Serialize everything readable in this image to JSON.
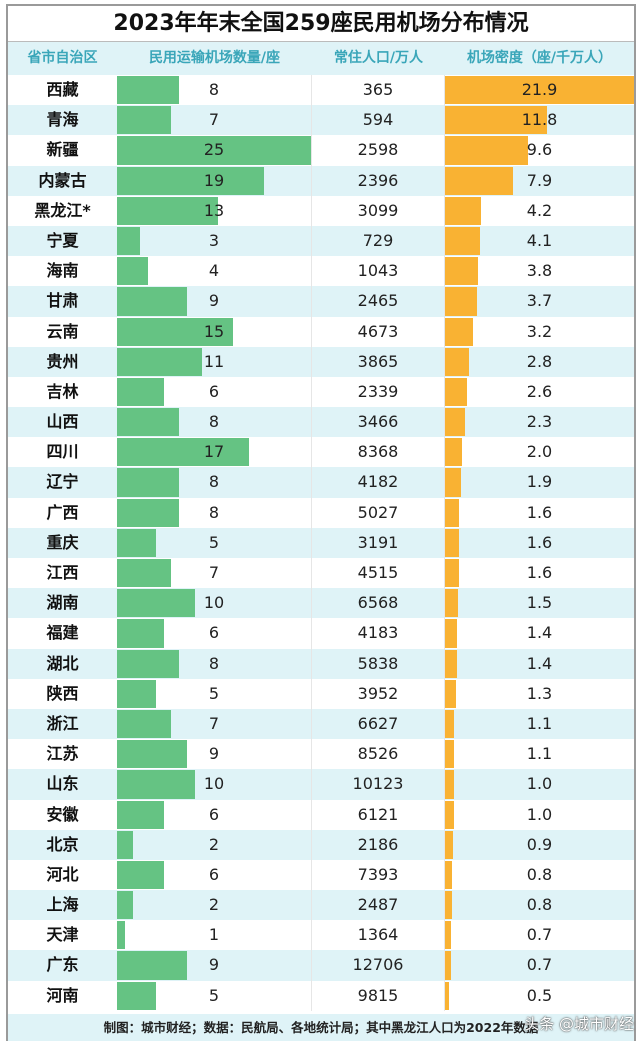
{
  "chart_data": {
    "type": "table",
    "title": "2023年年末全国259座民用机场分布情况",
    "columns": [
      "省市自治区",
      "民用运输机场数量/座",
      "常住人口/万人",
      "机场密度（座/千万人）"
    ],
    "colors": {
      "airports_bar": "#65c383",
      "density_bar": "#f9b233",
      "header_text": "#3aa6b9",
      "alt_row": "#dff3f7"
    },
    "rows": [
      [
        "西藏",
        8,
        365,
        "21.9"
      ],
      [
        "青海",
        7,
        594,
        "11.8"
      ],
      [
        "新疆",
        25,
        2598,
        "9.6"
      ],
      [
        "内蒙古",
        19,
        2396,
        "7.9"
      ],
      [
        "黑龙江*",
        13,
        3099,
        "4.2"
      ],
      [
        "宁夏",
        3,
        729,
        "4.1"
      ],
      [
        "海南",
        4,
        1043,
        "3.8"
      ],
      [
        "甘肃",
        9,
        2465,
        "3.7"
      ],
      [
        "云南",
        15,
        4673,
        "3.2"
      ],
      [
        "贵州",
        11,
        3865,
        "2.8"
      ],
      [
        "吉林",
        6,
        2339,
        "2.6"
      ],
      [
        "山西",
        8,
        3466,
        "2.3"
      ],
      [
        "四川",
        17,
        8368,
        "2.0"
      ],
      [
        "辽宁",
        8,
        4182,
        "1.9"
      ],
      [
        "广西",
        8,
        5027,
        "1.6"
      ],
      [
        "重庆",
        5,
        3191,
        "1.6"
      ],
      [
        "江西",
        7,
        4515,
        "1.6"
      ],
      [
        "湖南",
        10,
        6568,
        "1.5"
      ],
      [
        "福建",
        6,
        4183,
        "1.4"
      ],
      [
        "湖北",
        8,
        5838,
        "1.4"
      ],
      [
        "陕西",
        5,
        3952,
        "1.3"
      ],
      [
        "浙江",
        7,
        6627,
        "1.1"
      ],
      [
        "江苏",
        9,
        8526,
        "1.1"
      ],
      [
        "山东",
        10,
        10123,
        "1.0"
      ],
      [
        "安徽",
        6,
        6121,
        "1.0"
      ],
      [
        "北京",
        2,
        2186,
        "0.9"
      ],
      [
        "河北",
        6,
        7393,
        "0.8"
      ],
      [
        "上海",
        2,
        2487,
        "0.8"
      ],
      [
        "天津",
        1,
        1364,
        "0.7"
      ],
      [
        "广东",
        9,
        12706,
        "0.7"
      ],
      [
        "河南",
        5,
        9815,
        "0.5"
      ]
    ],
    "footer": "制图：城市财经；数据：民航局、各地统计局；其中黑龙江人口为2022年数据",
    "watermark": "头条 @城市财经"
  }
}
